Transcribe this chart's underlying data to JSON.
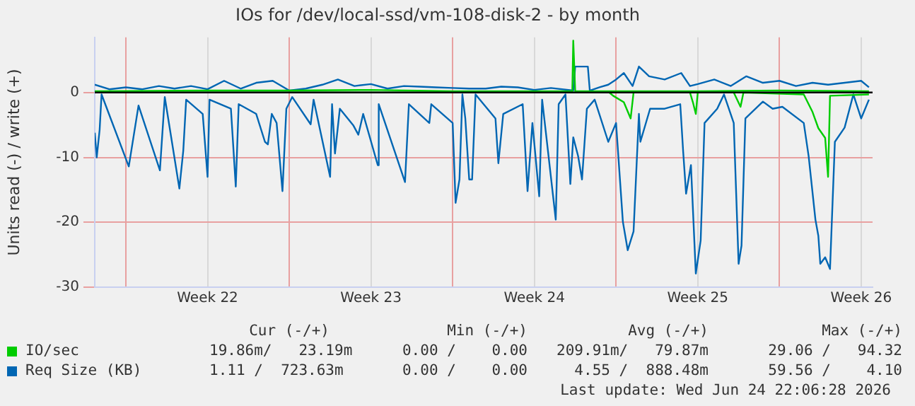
{
  "chart_data": {
    "type": "line",
    "title": "IOs for /dev/local-ssd/vm-108-disk-2 - by month",
    "ylabel": "Units read (-) / write (+)",
    "xlim": [
      "2026-05-22T16:00",
      "2026-06-24T23:45"
    ],
    "xticks": [
      {
        "value": "2026-05-24T00:00",
        "label": null
      },
      {
        "value": "2026-05-27T12:00",
        "label": "Week 22"
      },
      {
        "value": "2026-05-31T00:00",
        "label": null
      },
      {
        "value": "2026-06-03T12:00",
        "label": "Week 23"
      },
      {
        "value": "2026-06-07T00:00",
        "label": null
      },
      {
        "value": "2026-06-10T12:00",
        "label": "Week 24"
      },
      {
        "value": "2026-06-14T00:00",
        "label": null
      },
      {
        "value": "2026-06-17T12:00",
        "label": "Week 25"
      },
      {
        "value": "2026-06-21T00:00",
        "label": null
      },
      {
        "value": "2026-06-24T12:00",
        "label": "Week 26"
      }
    ],
    "ylim": [
      -30,
      8.5
    ],
    "yticks": [
      -30,
      -20,
      -10,
      0
    ],
    "grid": true,
    "legend": "bottom",
    "marker": "none",
    "line_style": "solid",
    "ref_lines": [
      {
        "axis": "y",
        "value": 0,
        "color": "#000000"
      }
    ],
    "series": [
      {
        "name": "IO/sec",
        "color": "#00cc00",
        "x": [
          "2026-05-22T16:00",
          "2026-06-13T17:00",
          "2026-06-13T21:00",
          "2026-06-14T08:00",
          "2026-06-14T15:00",
          "2026-06-14T18:00",
          "2026-06-17T04:00",
          "2026-06-17T07:00",
          "2026-06-17T10:00",
          "2026-06-17T12:00",
          "2026-06-19T01:00",
          "2026-06-19T08:00",
          "2026-06-19T11:00",
          "2026-06-22T01:00",
          "2026-06-22T10:00",
          "2026-06-22T16:00",
          "2026-06-22T23:00",
          "2026-06-23T02:00",
          "2026-06-23T04:00",
          "2026-06-24T20:00"
        ],
        "values": [
          0,
          0,
          -0.5,
          -1.5,
          -4,
          0,
          0,
          -1.5,
          -3.3,
          0,
          0,
          -2.2,
          0,
          -0.3,
          -3,
          -5.5,
          -7,
          -13,
          -0.5,
          -0.3
        ]
      },
      {
        "color": "#00cc00",
        "x": [
          "2026-05-22T16:00",
          "2026-05-27T12:00",
          "2026-05-31T00:00",
          "2026-06-03T12:00",
          "2026-06-07T00:00",
          "2026-06-12T03:00",
          "2026-06-12T04:00",
          "2026-06-12T06:00",
          "2026-06-17T12:00",
          "2026-06-21T00:00",
          "2026-06-24T20:00"
        ],
        "values": [
          0.2,
          0.3,
          0.3,
          0.4,
          0.2,
          0.2,
          8,
          0.2,
          0.2,
          0.3,
          0.2
        ]
      },
      {
        "name": "Req Size (KB)",
        "color": "#0066b3",
        "x": [
          "2026-05-22T16:00",
          "2026-05-22T18:00",
          "2026-05-22T21:00",
          "2026-05-22T23:00",
          "2026-05-24T03:00",
          "2026-05-24T13:00",
          "2026-05-25T11:00",
          "2026-05-25T16:00",
          "2026-05-26T07:00",
          "2026-05-26T11:00",
          "2026-05-26T14:00",
          "2026-05-27T07:00",
          "2026-05-27T12:00",
          "2026-05-27T14:00",
          "2026-05-28T12:00",
          "2026-05-28T17:00",
          "2026-05-28T20:00",
          "2026-05-29T14:00",
          "2026-05-29T23:00",
          "2026-05-30T02:00",
          "2026-05-30T06:00",
          "2026-05-30T11:00",
          "2026-05-30T17:00",
          "2026-05-30T21:00",
          "2026-05-31T03:00",
          "2026-05-31T22:00",
          "2026-06-01T01:00",
          "2026-06-01T18:00",
          "2026-06-01T20:00",
          "2026-06-01T23:00",
          "2026-06-02T04:00",
          "2026-06-02T18:00",
          "2026-06-02T23:00",
          "2026-06-03T04:00",
          "2026-06-03T15:00",
          "2026-06-03T19:00",
          "2026-06-03T20:00",
          "2026-06-04T23:00",
          "2026-06-05T03:00",
          "2026-06-06T00:00",
          "2026-06-06T02:00",
          "2026-06-07T00:00",
          "2026-06-07T03:00",
          "2026-06-07T07:00",
          "2026-06-07T10:00",
          "2026-06-07T13:00",
          "2026-06-07T17:00",
          "2026-06-07T20:00",
          "2026-06-07T23:30",
          "2026-06-08T20:00",
          "2026-06-08T23:00",
          "2026-06-09T04:00",
          "2026-06-10T00:00",
          "2026-06-10T05:00",
          "2026-06-10T10:00",
          "2026-06-10T17:00",
          "2026-06-10T20:00",
          "2026-06-11T10:00",
          "2026-06-11T13:00",
          "2026-06-11T20:00",
          "2026-06-12T01:00",
          "2026-06-12T04:00",
          "2026-06-12T09:00",
          "2026-06-12T13:00",
          "2026-06-12T18:00",
          "2026-06-13T02:00",
          "2026-06-13T16:00",
          "2026-06-14T00:00",
          "2026-06-14T07:00",
          "2026-06-14T12:00",
          "2026-06-14T18:00",
          "2026-06-14T23:30",
          "2026-06-15T01:00",
          "2026-06-15T11:00",
          "2026-06-16T02:00",
          "2026-06-16T18:00",
          "2026-06-16T21:00",
          "2026-06-17T00:00",
          "2026-06-17T05:00",
          "2026-06-17T10:00",
          "2026-06-17T15:00",
          "2026-06-17T19:00",
          "2026-06-18T08:00",
          "2026-06-18T15:00",
          "2026-06-19T01:00",
          "2026-06-19T06:00",
          "2026-06-19T09:00",
          "2026-06-19T13:00",
          "2026-06-20T07:00",
          "2026-06-20T17:00",
          "2026-06-21T03:00",
          "2026-06-22T01:00",
          "2026-06-22T06:00",
          "2026-06-22T13:00",
          "2026-06-22T16:00",
          "2026-06-22T18:00",
          "2026-06-22T23:00",
          "2026-06-23T04:00",
          "2026-06-23T09:00",
          "2026-06-23T19:00",
          "2026-06-24T04:00",
          "2026-06-24T12:00",
          "2026-06-24T20:00"
        ],
        "values": [
          -6.2,
          -10,
          -5.8,
          -0.3,
          -11.4,
          -2,
          -12,
          -0.7,
          -14.8,
          -9,
          -1.1,
          -3.3,
          -13,
          -1.1,
          -2.5,
          -14.5,
          -1.8,
          -3.3,
          -7.6,
          -8,
          -3.3,
          -4.7,
          -15.2,
          -2.5,
          -0.7,
          -4.9,
          -1.1,
          -13,
          -1.8,
          -9.4,
          -2.5,
          -5.1,
          -6.5,
          -3.3,
          -9.1,
          -11.2,
          -1.8,
          -13.8,
          -1.8,
          -4.7,
          -1.8,
          -4.7,
          -17,
          -13.4,
          -0.3,
          -4,
          -13.4,
          -13.4,
          -0.3,
          -4,
          -10.9,
          -3.3,
          -1.8,
          -15.2,
          -4.7,
          -16,
          -1.1,
          -19.6,
          -1.8,
          -0.3,
          -14.1,
          -6.9,
          -9.8,
          -13.4,
          -2.5,
          -1.1,
          -7.6,
          -4.7,
          -19.9,
          -24.3,
          -21.4,
          -3.3,
          -7.6,
          -2.5,
          -2.5,
          -1.8,
          -9.1,
          -15.6,
          -11.2,
          -27.9,
          -22.8,
          -4.7,
          -2.5,
          -0.3,
          -4.7,
          -26.4,
          -23.6,
          -4,
          -1.4,
          -2.5,
          -2.2,
          -4.7,
          -9.8,
          -19.6,
          -22.1,
          -26.4,
          -25.4,
          -27.2,
          -7.6,
          -5.4,
          -0.3,
          -4,
          -1.1
        ]
      },
      {
        "color": "#0066b3",
        "x": [
          "2026-05-22T16:00",
          "2026-05-23T07:00",
          "2026-05-24T00:00",
          "2026-05-24T17:00",
          "2026-05-25T10:00",
          "2026-05-26T02:00",
          "2026-05-26T19:00",
          "2026-05-27T12:00",
          "2026-05-28T05:00",
          "2026-05-28T22:00",
          "2026-05-29T14:00",
          "2026-05-30T07:00",
          "2026-05-31T00:00",
          "2026-05-31T17:00",
          "2026-06-01T10:00",
          "2026-06-02T02:00",
          "2026-06-02T19:00",
          "2026-06-03T12:00",
          "2026-06-04T05:00",
          "2026-06-04T22:00",
          "2026-06-05T14:00",
          "2026-06-06T07:00",
          "2026-06-07T00:00",
          "2026-06-07T17:00",
          "2026-06-08T10:00",
          "2026-06-09T02:00",
          "2026-06-09T19:00",
          "2026-06-10T12:00",
          "2026-06-11T05:00",
          "2026-06-12T04:00",
          "2026-06-12T06:00",
          "2026-06-12T19:00",
          "2026-06-12T21:00",
          "2026-06-13T07:00",
          "2026-06-13T16:00",
          "2026-06-14T00:00",
          "2026-06-14T08:00",
          "2026-06-14T17:00",
          "2026-06-14T23:30",
          "2026-06-15T10:00",
          "2026-06-16T02:00",
          "2026-06-16T19:00",
          "2026-06-17T04:00",
          "2026-06-17T12:00",
          "2026-06-18T05:00",
          "2026-06-18T22:00",
          "2026-06-19T14:00",
          "2026-06-20T07:00",
          "2026-06-21T00:00",
          "2026-06-21T17:00",
          "2026-06-22T10:00",
          "2026-06-23T02:00",
          "2026-06-23T19:00",
          "2026-06-24T12:00",
          "2026-06-24T20:00"
        ],
        "values": [
          1.2,
          0.5,
          0.8,
          0.5,
          1,
          0.6,
          1,
          0.5,
          1.8,
          0.6,
          1.5,
          1.8,
          0.3,
          0.6,
          1.2,
          2,
          1,
          1.3,
          0.6,
          1,
          0.9,
          0.8,
          0.7,
          0.6,
          0.6,
          0.9,
          0.8,
          0.4,
          0.7,
          0.3,
          4,
          4,
          0.3,
          0.8,
          1.2,
          2,
          3,
          1,
          4,
          2.5,
          2,
          3,
          1,
          1.3,
          2,
          1,
          2.5,
          1.5,
          1.8,
          1,
          1.5,
          1.2,
          1.5,
          1.8,
          0.8
        ]
      }
    ],
    "annotations": [
      "Cur (-/+)",
      "Min (-/+)",
      "Avg (-/+)",
      "Max (-/+)",
      "19.86m/   23.19m",
      "0.00 /    0.00",
      "209.91m/   79.87m",
      "29.06 /   94.32",
      "1.11 /  723.63m",
      "0.00 /    0.00",
      "4.55 /  888.48m",
      "59.56 /    4.10",
      "Last update: Wed Jun 24 22:06:28 2026"
    ]
  }
}
